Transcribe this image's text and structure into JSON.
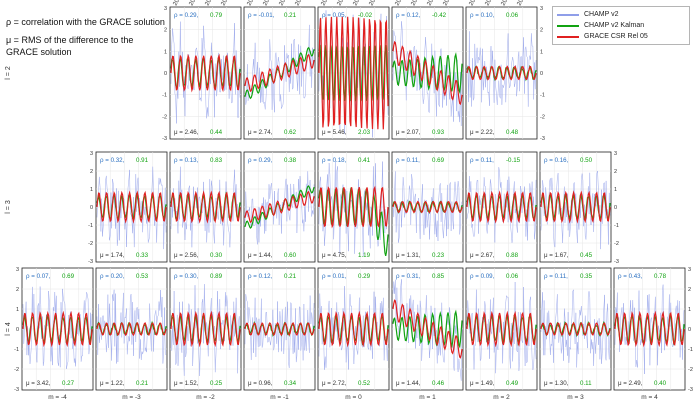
{
  "notes": [
    "ρ = correlation with the GRACE solution",
    "μ = RMS of the difference to the GRACE solution"
  ],
  "legend": [
    {
      "label": "CHAMP v2",
      "color": "#8f9ee9"
    },
    {
      "label": "CHAMP v2 Kalman",
      "color": "#11a311"
    },
    {
      "label": "GRACE CSR Rel 05",
      "color": "#e02020"
    }
  ],
  "colors": {
    "rho": "#2a6fc0",
    "mu_green": "#11a311",
    "mu_label": "#333333"
  },
  "ylim": [
    -3,
    3
  ],
  "yticks": [
    "3",
    "2",
    "1",
    "0",
    "-1",
    "-2",
    "-3"
  ],
  "year_labels": [
    "2003",
    "2004",
    "2005",
    "2006",
    "2007"
  ],
  "m_labels": [
    "m = -4",
    "m = -3",
    "m = -2",
    "m = -1",
    "m = 0",
    "m = 1",
    "m = 2",
    "m = 3",
    "m = 4"
  ],
  "chart_data": {
    "type": "line",
    "x_range": [
      "2003",
      "2007"
    ],
    "ylim": [
      -3,
      3
    ],
    "series_names": [
      "CHAMP v2",
      "CHAMP v2 Kalman",
      "GRACE CSR Rel 05"
    ],
    "rows": [
      {
        "label": "l = 2",
        "panels": [
          {
            "m": "-2",
            "rho_a": "ρ = 0.29,",
            "rho_b": "0.79",
            "mu_a": "μ = 2.46,",
            "mu_b": "0.44",
            "style": "osc"
          },
          {
            "m": "-1",
            "rho_a": "ρ = -0.01,",
            "rho_b": "0.21",
            "mu_a": "μ = 2.74,",
            "mu_b": "0.62",
            "style": "trend"
          },
          {
            "m": "0",
            "rho_a": "ρ = 0.05,",
            "rho_b": "-0.02",
            "mu_a": "μ = 5.46,",
            "mu_b": "2.03",
            "style": "wild"
          },
          {
            "m": "1",
            "rho_a": "ρ = 0.12,",
            "rho_b": "-0.42",
            "mu_a": "μ = 2.07,",
            "mu_b": "0.93",
            "style": "decay"
          },
          {
            "m": "2",
            "rho_a": "ρ = 0.10,",
            "rho_b": "0.06",
            "mu_a": "μ = 2.22,",
            "mu_b": "0.48",
            "style": "flat"
          }
        ]
      },
      {
        "label": "l = 3",
        "panels": [
          {
            "m": "-3",
            "rho_a": "ρ = 0.32,",
            "rho_b": "0.91",
            "mu_a": "μ = 1.74,",
            "mu_b": "0.33",
            "style": "osc"
          },
          {
            "m": "-2",
            "rho_a": "ρ = 0.13,",
            "rho_b": "0.83",
            "mu_a": "μ = 2.56,",
            "mu_b": "0.30",
            "style": "osc"
          },
          {
            "m": "-1",
            "rho_a": "ρ = 0.29,",
            "rho_b": "0.38",
            "mu_a": "μ = 1.44,",
            "mu_b": "0.60",
            "style": "trend"
          },
          {
            "m": "0",
            "rho_a": "ρ = 0.18,",
            "rho_b": "0.41",
            "mu_a": "μ = 4.75,",
            "mu_b": "1.19",
            "style": "big"
          },
          {
            "m": "1",
            "rho_a": "ρ = 0.11,",
            "rho_b": "0.69",
            "mu_a": "μ = 1.31,",
            "mu_b": "0.23",
            "style": "flat"
          },
          {
            "m": "2",
            "rho_a": "ρ = 0.11,",
            "rho_b": "-0.15",
            "mu_a": "μ = 2.67,",
            "mu_b": "0.88",
            "style": "osc"
          },
          {
            "m": "3",
            "rho_a": "ρ = 0.16,",
            "rho_b": "0.50",
            "mu_a": "μ = 1.67,",
            "mu_b": "0.45",
            "style": "osc"
          }
        ]
      },
      {
        "label": "l = 4",
        "panels": [
          {
            "m": "-4",
            "rho_a": "ρ = 0.07,",
            "rho_b": "0.69",
            "mu_a": "μ = 3.42,",
            "mu_b": "0.27",
            "style": "osc"
          },
          {
            "m": "-3",
            "rho_a": "ρ = 0.20,",
            "rho_b": "0.53",
            "mu_a": "μ = 1.22,",
            "mu_b": "0.21",
            "style": "flat"
          },
          {
            "m": "-2",
            "rho_a": "ρ = 0.30,",
            "rho_b": "0.89",
            "mu_a": "μ = 1.52,",
            "mu_b": "0.25",
            "style": "osc"
          },
          {
            "m": "-1",
            "rho_a": "ρ = 0.12,",
            "rho_b": "0.21",
            "mu_a": "μ = 0.96,",
            "mu_b": "0.34",
            "style": "flat"
          },
          {
            "m": "0",
            "rho_a": "ρ = 0.01,",
            "rho_b": "0.29",
            "mu_a": "μ = 2.72,",
            "mu_b": "0.52",
            "style": "osc"
          },
          {
            "m": "1",
            "rho_a": "ρ = 0.31,",
            "rho_b": "0.85",
            "mu_a": "μ = 1.44,",
            "mu_b": "0.46",
            "style": "decay"
          },
          {
            "m": "2",
            "rho_a": "ρ = 0.09,",
            "rho_b": "0.06",
            "mu_a": "μ = 1.49,",
            "mu_b": "0.49",
            "style": "osc"
          },
          {
            "m": "3",
            "rho_a": "ρ = 0.11,",
            "rho_b": "0.35",
            "mu_a": "μ = 1.30,",
            "mu_b": "0.11",
            "style": "flat"
          },
          {
            "m": "4",
            "rho_a": "ρ = 0.43,",
            "rho_b": "0.78",
            "mu_a": "μ = 2.49,",
            "mu_b": "0.40",
            "style": "osc"
          }
        ]
      }
    ]
  }
}
